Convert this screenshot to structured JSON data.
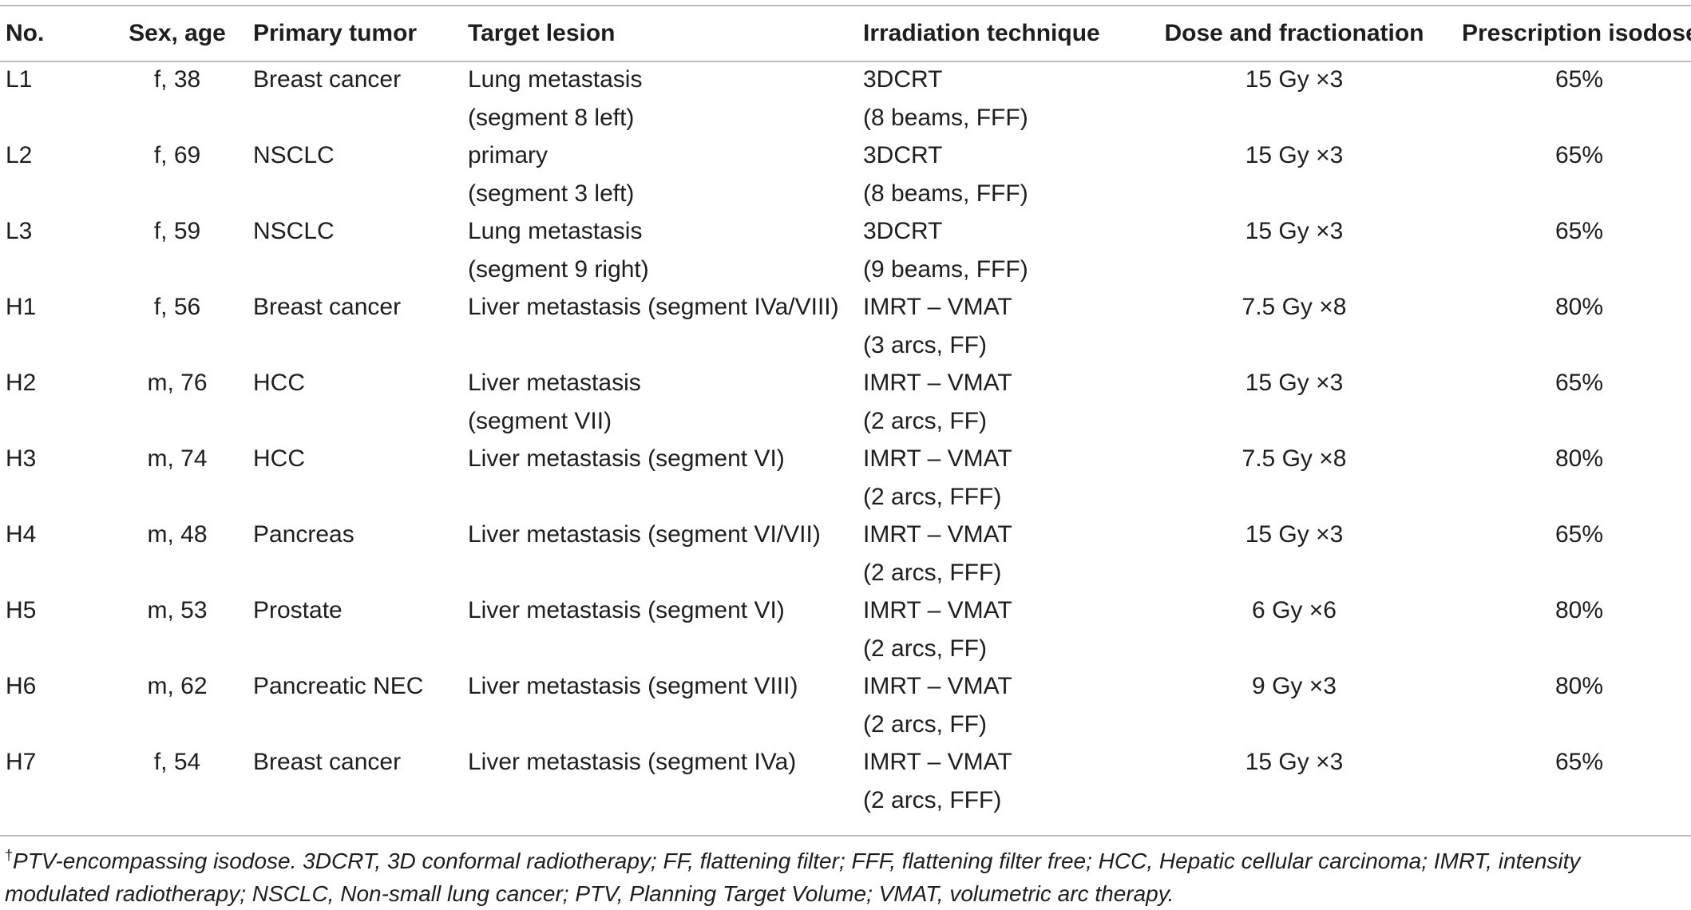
{
  "headers": {
    "no": "No.",
    "sex_age": "Sex, age",
    "primary_tumor": "Primary tumor",
    "target_lesion": "Target lesion",
    "technique": "Irradiation technique",
    "dose": "Dose and fractionation",
    "isodose": "Prescription isodose",
    "isodose_mark": "†"
  },
  "rows": [
    {
      "no": "L1",
      "sex_age": "f, 38",
      "tumor": "Breast cancer",
      "target1": "Lung metastasis",
      "target2": "(segment 8 left)",
      "tech1": "3DCRT",
      "tech2": "(8 beams, FFF)",
      "dose": "15 Gy ×3",
      "iso": "65%"
    },
    {
      "no": "L2",
      "sex_age": "f, 69",
      "tumor": "NSCLC",
      "target1": "primary",
      "target2": "(segment 3 left)",
      "tech1": "3DCRT",
      "tech2": "(8 beams, FFF)",
      "dose": "15 Gy ×3",
      "iso": "65%"
    },
    {
      "no": "L3",
      "sex_age": "f, 59",
      "tumor": "NSCLC",
      "target1": "Lung metastasis",
      "target2": "(segment 9 right)",
      "tech1": "3DCRT",
      "tech2": "(9 beams, FFF)",
      "dose": "15 Gy ×3",
      "iso": "65%"
    },
    {
      "no": "H1",
      "sex_age": "f, 56",
      "tumor": "Breast cancer",
      "target1": "Liver metastasis (segment IVa/VIII)",
      "target2": "",
      "tech1": "IMRT – VMAT",
      "tech2": "(3 arcs, FF)",
      "dose": "7.5 Gy ×8",
      "iso": "80%"
    },
    {
      "no": "H2",
      "sex_age": "m, 76",
      "tumor": "HCC",
      "target1": "Liver metastasis",
      "target2": "(segment VII)",
      "tech1": "IMRT – VMAT",
      "tech2": "(2 arcs, FF)",
      "dose": "15 Gy ×3",
      "iso": "65%"
    },
    {
      "no": "H3",
      "sex_age": "m, 74",
      "tumor": "HCC",
      "target1": "Liver metastasis (segment VI)",
      "target2": "",
      "tech1": "IMRT – VMAT",
      "tech2": "(2 arcs, FFF)",
      "dose": "7.5 Gy ×8",
      "iso": "80%"
    },
    {
      "no": "H4",
      "sex_age": "m, 48",
      "tumor": "Pancreas",
      "target1": "Liver metastasis (segment VI/VII)",
      "target2": "",
      "tech1": "IMRT – VMAT",
      "tech2": "(2 arcs, FFF)",
      "dose": "15 Gy ×3",
      "iso": "65%"
    },
    {
      "no": "H5",
      "sex_age": "m, 53",
      "tumor": "Prostate",
      "target1": "Liver metastasis (segment VI)",
      "target2": "",
      "tech1": "IMRT – VMAT",
      "tech2": "(2 arcs, FF)",
      "dose": "6 Gy ×6",
      "iso": "80%"
    },
    {
      "no": "H6",
      "sex_age": "m, 62",
      "tumor": "Pancreatic NEC",
      "target1": "Liver metastasis (segment VIII)",
      "target2": "",
      "tech1": "IMRT – VMAT",
      "tech2": "(2 arcs, FF)",
      "dose": "9 Gy ×3",
      "iso": "80%"
    },
    {
      "no": "H7",
      "sex_age": "f, 54",
      "tumor": "Breast cancer",
      "target1": "Liver metastasis (segment IVa)",
      "target2": "",
      "tech1": "IMRT – VMAT",
      "tech2": "(2 arcs, FFF)",
      "dose": "15 Gy ×3",
      "iso": "65%"
    }
  ],
  "footnote": {
    "mark": "†",
    "text": "PTV-encompassing isodose. 3DCRT, 3D conformal radiotherapy; FF, flattening filter; FFF, flattening filter free; HCC, Hepatic cellular carcinoma; IMRT, intensity modulated radiotherapy; NSCLC, Non-small lung cancer; PTV, Planning Target Volume; VMAT, volumetric arc therapy."
  }
}
